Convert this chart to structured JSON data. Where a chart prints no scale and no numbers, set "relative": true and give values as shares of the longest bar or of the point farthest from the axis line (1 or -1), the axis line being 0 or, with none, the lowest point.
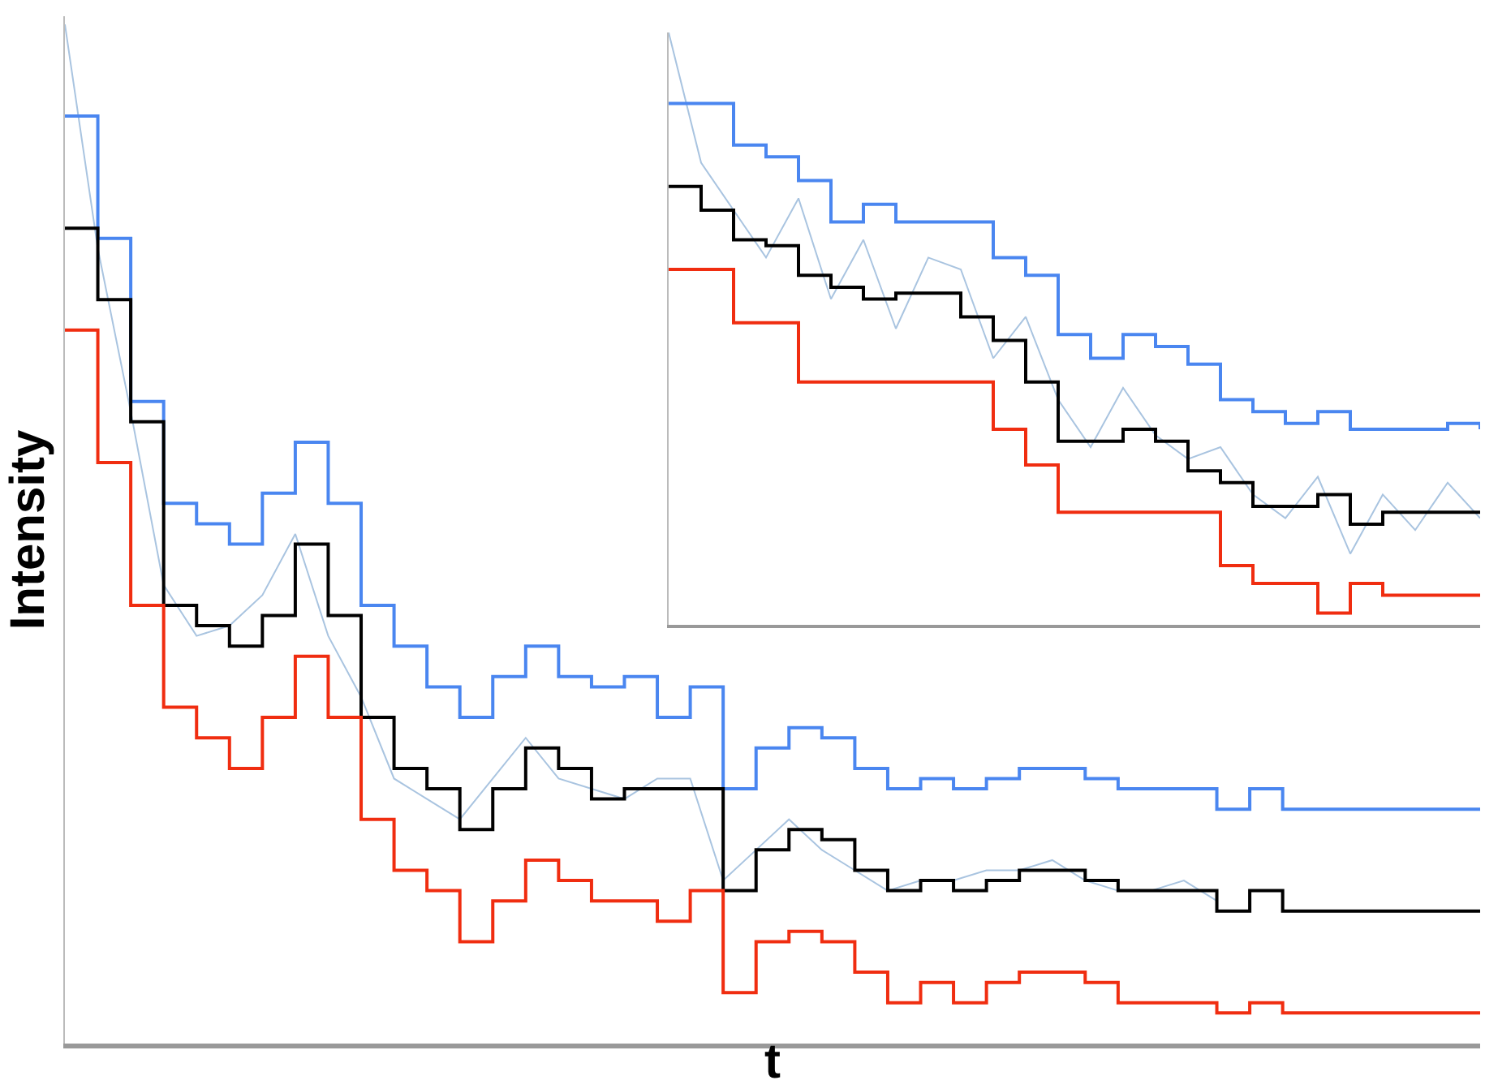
{
  "chart_data": [
    {
      "type": "step",
      "relative": true,
      "xlabel": "t",
      "ylabel": "Intensity",
      "categories": [
        null,
        null,
        null,
        null,
        null,
        null,
        null,
        null,
        null,
        null,
        null,
        null,
        null,
        null,
        null,
        null,
        null,
        null,
        null,
        null,
        null,
        null,
        null,
        null,
        null,
        null,
        null,
        null,
        null,
        null,
        null,
        null,
        null,
        null,
        null,
        null,
        null,
        null,
        null,
        null,
        null,
        null,
        null,
        null
      ],
      "series": [
        {
          "type": "line",
          "color": "#a9c4e0",
          "values": [
            1.0,
            0.78,
            0.62,
            0.45,
            0.4,
            0.41,
            0.44,
            0.5,
            0.4,
            0.34,
            0.26,
            0.24,
            0.22,
            0.26,
            0.3,
            0.26,
            0.25,
            0.24,
            0.26,
            0.26,
            0.16,
            0.19,
            0.22,
            0.19,
            0.17,
            0.15,
            0.16,
            0.16,
            0.17,
            0.17,
            0.18,
            0.16,
            0.15,
            0.15,
            0.16,
            0.14,
            null,
            null,
            null,
            null,
            null,
            null,
            null,
            null
          ]
        },
        {
          "color": "#4a86f0",
          "values": [
            0.91,
            0.79,
            0.63,
            0.53,
            0.51,
            0.49,
            0.54,
            0.59,
            0.53,
            0.43,
            0.39,
            0.35,
            0.32,
            0.36,
            0.39,
            0.36,
            0.35,
            0.36,
            0.32,
            0.35,
            0.25,
            0.29,
            0.31,
            0.3,
            0.27,
            0.25,
            0.26,
            0.25,
            0.26,
            0.27,
            0.27,
            0.26,
            0.25,
            0.25,
            0.25,
            0.23,
            0.25,
            0.23,
            0.23,
            0.23,
            0.23,
            0.23,
            0.23,
            0.23
          ]
        },
        {
          "color": "#000000",
          "values": [
            0.8,
            0.73,
            0.61,
            0.43,
            0.41,
            0.39,
            0.42,
            0.49,
            0.42,
            0.32,
            0.27,
            0.25,
            0.21,
            0.25,
            0.29,
            0.27,
            0.24,
            0.25,
            0.25,
            0.25,
            0.15,
            0.19,
            0.21,
            0.2,
            0.17,
            0.15,
            0.16,
            0.15,
            0.16,
            0.17,
            0.17,
            0.16,
            0.15,
            0.15,
            0.15,
            0.13,
            0.15,
            0.13,
            0.13,
            0.13,
            0.13,
            0.13,
            0.13,
            0.13
          ]
        },
        {
          "color": "#f02d10",
          "values": [
            0.7,
            0.57,
            0.43,
            0.33,
            0.3,
            0.27,
            0.32,
            0.38,
            0.32,
            0.22,
            0.17,
            0.15,
            0.1,
            0.14,
            0.18,
            0.16,
            0.14,
            0.14,
            0.12,
            0.15,
            0.05,
            0.1,
            0.11,
            0.1,
            0.07,
            0.04,
            0.06,
            0.04,
            0.06,
            0.07,
            0.07,
            0.06,
            0.04,
            0.04,
            0.04,
            0.03,
            0.04,
            0.03,
            0.03,
            0.03,
            0.03,
            0.03,
            0.03,
            0.03
          ]
        }
      ]
    },
    {
      "type": "step",
      "relative": true,
      "categories": [
        null,
        null,
        null,
        null,
        null,
        null,
        null,
        null,
        null,
        null,
        null,
        null,
        null,
        null,
        null,
        null,
        null,
        null,
        null,
        null,
        null,
        null,
        null,
        null,
        null,
        null
      ],
      "series": [
        {
          "type": "line",
          "color": "#a9c4e0",
          "values": [
            1.0,
            0.78,
            0.7,
            0.62,
            0.72,
            0.55,
            0.65,
            0.5,
            0.62,
            0.6,
            0.45,
            0.52,
            0.38,
            0.3,
            0.4,
            0.32,
            0.28,
            0.3,
            0.22,
            0.18,
            0.25,
            0.12,
            0.22,
            0.16,
            0.24,
            0.18
          ]
        },
        {
          "color": "#4a86f0",
          "values": [
            0.88,
            0.88,
            0.81,
            0.79,
            0.75,
            0.68,
            0.71,
            0.68,
            0.68,
            0.68,
            0.62,
            0.59,
            0.49,
            0.45,
            0.49,
            0.47,
            0.44,
            0.38,
            0.36,
            0.34,
            0.36,
            0.33,
            0.33,
            0.33,
            0.34,
            0.33
          ]
        },
        {
          "color": "#000000",
          "values": [
            0.74,
            0.7,
            0.65,
            0.64,
            0.59,
            0.57,
            0.55,
            0.56,
            0.56,
            0.52,
            0.48,
            0.41,
            0.31,
            0.31,
            0.33,
            0.31,
            0.26,
            0.24,
            0.2,
            0.2,
            0.22,
            0.17,
            0.19,
            0.19,
            0.19,
            0.19
          ]
        },
        {
          "color": "#f02d10",
          "values": [
            0.6,
            0.6,
            0.51,
            0.51,
            0.41,
            0.41,
            0.41,
            0.41,
            0.41,
            0.41,
            0.33,
            0.27,
            0.19,
            0.19,
            0.19,
            0.19,
            0.19,
            0.1,
            0.07,
            0.07,
            0.02,
            0.07,
            0.05,
            0.05,
            0.05,
            0.05
          ]
        }
      ]
    }
  ]
}
